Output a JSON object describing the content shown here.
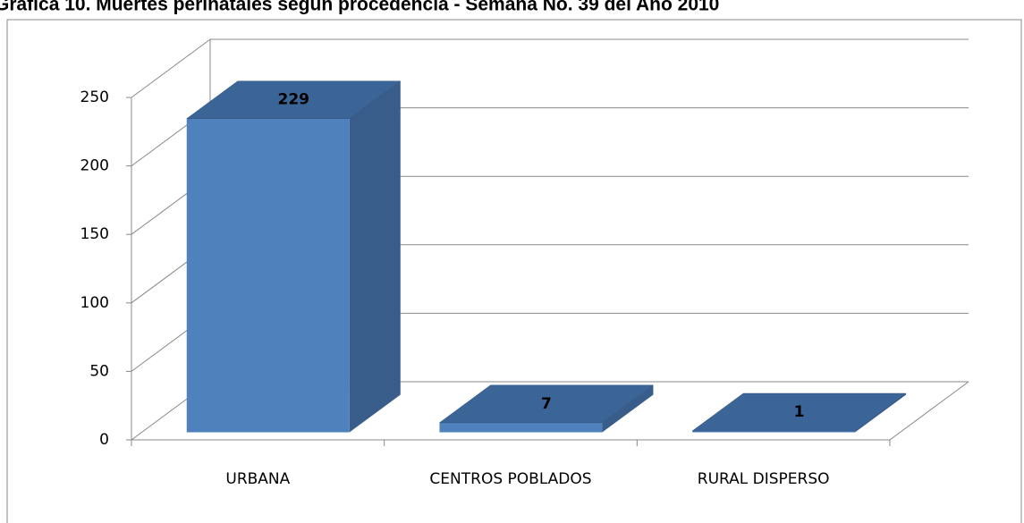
{
  "chart_data": {
    "type": "bar3d",
    "title": "Gráfica 10. Muertes perinatales según procedencia - Semana No. 39 del Año 2010",
    "categories": [
      "URBANA",
      "CENTROS POBLADOS",
      "RURAL DISPERSO"
    ],
    "values": [
      229,
      7,
      1
    ],
    "color": "#4f81bd",
    "ylim": [
      0,
      250
    ],
    "yticks": [
      0,
      50,
      100,
      150,
      200,
      250
    ],
    "grid": true
  }
}
